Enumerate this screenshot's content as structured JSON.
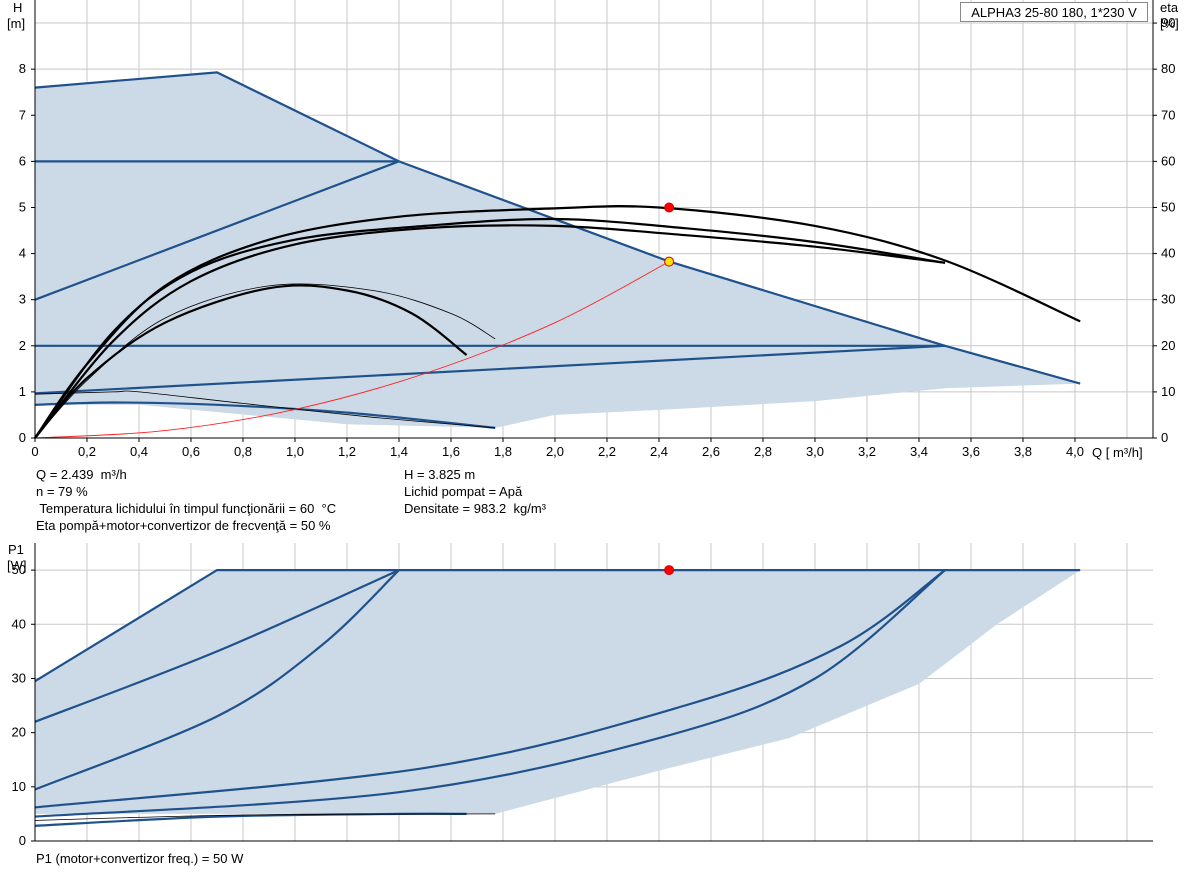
{
  "legend": "ALPHA3 25-80 180, 1*230 V",
  "upper": {
    "ylabel": "H",
    "yunit": "[m]",
    "y2label": "eta",
    "y2unit": "[%]",
    "xlabel": "Q [ m³/h]",
    "xticks": [
      "0",
      "0,2",
      "0,4",
      "0,6",
      "0,8",
      "1,0",
      "1,2",
      "1,4",
      "1,6",
      "1,8",
      "2,0",
      "2,2",
      "2,4",
      "2,6",
      "2,8",
      "3,0",
      "3,2",
      "3,4",
      "3,6",
      "3,8",
      "4,0"
    ],
    "yticks": [
      "0",
      "1",
      "2",
      "3",
      "4",
      "5",
      "6",
      "7",
      "8"
    ],
    "y2ticks": [
      "0",
      "10",
      "20",
      "30",
      "40",
      "50",
      "60",
      "70",
      "80",
      "90"
    ]
  },
  "lower": {
    "ylabel": "P1",
    "yunit": "[W]",
    "yticks": [
      "0",
      "10",
      "20",
      "30",
      "40",
      "50"
    ]
  },
  "info": {
    "q": "Q = 2.439  m³/h",
    "n": "n = 79 %",
    "temp": " Temperatura lichidului în timpul funcţionării = 60  °C",
    "eta": "Eta pompă+motor+convertizor de frecvenţă = 50 %",
    "h": "H = 3.825 m",
    "liquid": "Lichid pompat = Apă",
    "density": "Densitate = 983.2  kg/m³",
    "p1": "P1 (motor+convertizor freq.) = 50 W"
  },
  "chart_data": [
    {
      "type": "line",
      "title": "",
      "xlabel": "Q [ m³/h]",
      "ylabel": "H [m]",
      "y2label": "eta [%]",
      "xlim": [
        0,
        4.3
      ],
      "ylim": [
        0,
        9.5
      ],
      "y2lim": [
        0,
        95
      ],
      "grid": true,
      "legend": "top-right",
      "envelope": {
        "upper": [
          [
            0,
            7.6
          ],
          [
            0.7,
            7.93
          ],
          [
            1.4,
            6.0
          ],
          [
            2.44,
            3.825
          ],
          [
            3.5,
            2.0
          ],
          [
            4.02,
            1.18
          ]
        ],
        "lower": [
          [
            4.02,
            1.18
          ],
          [
            3.5,
            1.08
          ],
          [
            3.0,
            0.8
          ],
          [
            2.44,
            0.62
          ],
          [
            2.0,
            0.5
          ],
          [
            1.77,
            0.22
          ],
          [
            1.2,
            0.3
          ],
          [
            0.4,
            0.72
          ],
          [
            0,
            0.72
          ]
        ]
      },
      "series": [
        {
          "name": "",
          "role": "control-top",
          "x": [
            0,
            0.7,
            1.4,
            2.44,
            3.5,
            4.02
          ],
          "y": [
            7.6,
            7.93,
            6.0,
            3.825,
            2.0,
            1.18
          ]
        },
        {
          "name": "",
          "role": "control",
          "x": [
            0,
            1.4
          ],
          "y": [
            6.0,
            6.0
          ]
        },
        {
          "name": "",
          "role": "control",
          "x": [
            0,
            1.4
          ],
          "y": [
            3.0,
            6.0
          ]
        },
        {
          "name": "",
          "role": "control",
          "x": [
            0,
            3.5
          ],
          "y": [
            2.0,
            2.0
          ]
        },
        {
          "name": "",
          "role": "control",
          "x": [
            0,
            3.5
          ],
          "y": [
            0.97,
            2.0
          ]
        },
        {
          "name": "",
          "role": "control",
          "x": [
            0,
            0.3,
            0.7,
            1.2,
            1.77
          ],
          "y": [
            0.72,
            0.77,
            0.72,
            0.55,
            0.22
          ]
        },
        {
          "name": "",
          "role": "head",
          "x": [
            0,
            0.2,
            0.5,
            0.9,
            1.4,
            2.0,
            2.4,
            3.0,
            3.5,
            4.02
          ],
          "y": [
            0,
            1.6,
            3.3,
            4.3,
            4.8,
            4.98,
            5.0,
            4.6,
            3.85,
            2.53
          ]
        },
        {
          "name": "",
          "role": "head",
          "x": [
            0,
            0.3,
            0.6,
            1.0,
            1.5,
            2.0,
            2.5,
            3.0,
            3.5
          ],
          "y": [
            0,
            2.1,
            3.4,
            4.2,
            4.55,
            4.6,
            4.4,
            4.15,
            3.8
          ]
        },
        {
          "name": "",
          "role": "head",
          "x": [
            0,
            0.3,
            0.6,
            1.0,
            1.5,
            2.0,
            2.5,
            3.0,
            3.5
          ],
          "y": [
            0,
            2.3,
            3.6,
            4.3,
            4.6,
            4.75,
            4.55,
            4.25,
            3.8
          ]
        },
        {
          "name": "",
          "role": "head",
          "x": [
            0,
            0.2,
            0.5,
            0.9,
            1.2,
            1.45,
            1.66
          ],
          "y": [
            0,
            1.3,
            2.5,
            3.25,
            3.2,
            2.7,
            1.8
          ]
        },
        {
          "name": "",
          "role": "head-thin",
          "x": [
            0,
            0.2,
            0.5,
            0.9,
            1.3,
            1.6,
            1.77
          ],
          "y": [
            0,
            1.25,
            2.6,
            3.3,
            3.2,
            2.7,
            2.15
          ]
        },
        {
          "name": "",
          "role": "head-thin",
          "x": [
            0,
            0.3,
            0.4,
            0.8,
            1.3,
            1.77
          ],
          "y": [
            0.95,
            1.0,
            1.0,
            0.75,
            0.45,
            0.22
          ]
        },
        {
          "name": "",
          "role": "system",
          "x": [
            0,
            0.5,
            1.0,
            1.5,
            2.0,
            2.439
          ],
          "y": [
            0,
            0.16,
            0.62,
            1.4,
            2.5,
            3.825
          ]
        }
      ],
      "points": [
        {
          "x": 2.439,
          "y": 3.825,
          "color": "#ffe000",
          "label": "duty point"
        },
        {
          "x": 2.439,
          "y": 5.0,
          "color": "#ff0000",
          "label": "eta point"
        }
      ]
    },
    {
      "type": "line",
      "title": "",
      "xlabel": "Q [ m³/h]",
      "ylabel": "P1 [W]",
      "xlim": [
        0,
        4.3
      ],
      "ylim": [
        0,
        55
      ],
      "grid": true,
      "envelope": {
        "upper": [
          [
            0,
            29.5
          ],
          [
            0.7,
            50
          ],
          [
            4.02,
            50
          ]
        ],
        "lower": [
          [
            4.02,
            50
          ],
          [
            3.7,
            40
          ],
          [
            3.4,
            29
          ],
          [
            2.9,
            19
          ],
          [
            2.4,
            13
          ],
          [
            1.77,
            5
          ],
          [
            0,
            5
          ]
        ]
      },
      "series": [
        {
          "name": "",
          "role": "control-top",
          "x": [
            0,
            0.7,
            4.02
          ],
          "y": [
            29.5,
            50,
            50
          ]
        },
        {
          "name": "",
          "role": "control",
          "x": [
            0,
            0.7,
            1.4
          ],
          "y": [
            22,
            35,
            50
          ]
        },
        {
          "name": "",
          "role": "control",
          "x": [
            0,
            0.7,
            1.1,
            1.4
          ],
          "y": [
            9.5,
            23,
            36,
            50
          ]
        },
        {
          "name": "",
          "role": "control",
          "x": [
            0,
            1.5,
            2.5,
            3.1,
            3.5
          ],
          "y": [
            6.2,
            13.5,
            25,
            36,
            50
          ]
        },
        {
          "name": "",
          "role": "control",
          "x": [
            0,
            1.4,
            2.4,
            3.0,
            3.5
          ],
          "y": [
            4.5,
            9,
            19,
            30,
            50
          ]
        },
        {
          "name": "",
          "role": "control",
          "x": [
            0,
            0.7,
            1.4,
            1.66
          ],
          "y": [
            2.8,
            4.5,
            5,
            5
          ]
        },
        {
          "name": "",
          "role": "head-thin",
          "x": [
            0,
            0.8,
            1.77
          ],
          "y": [
            3.8,
            4.8,
            5
          ]
        }
      ],
      "points": [
        {
          "x": 2.439,
          "y": 50,
          "color": "#ff0000",
          "label": "power point"
        }
      ]
    }
  ]
}
